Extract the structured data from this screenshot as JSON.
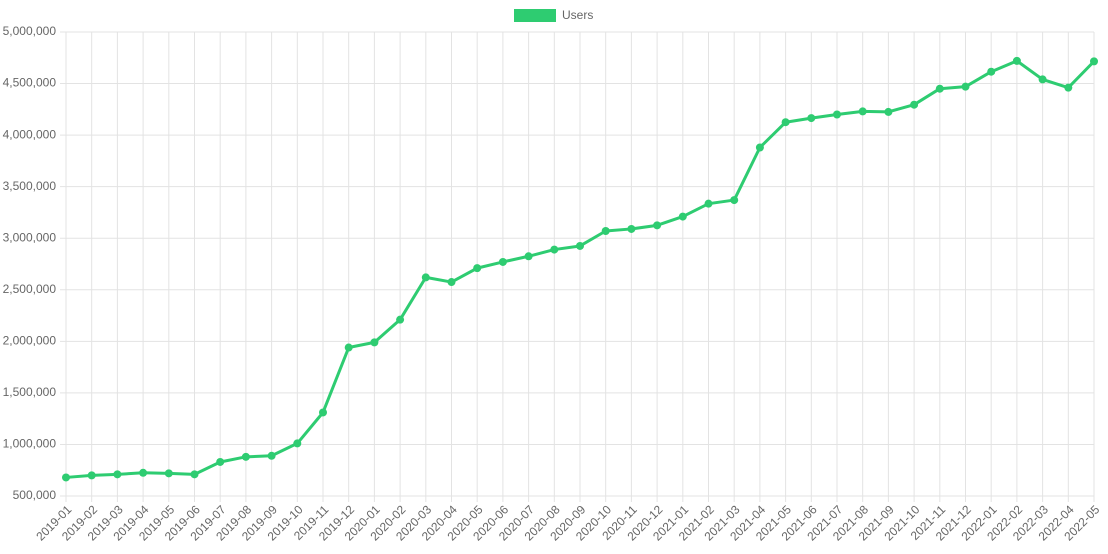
{
  "chart_data": {
    "type": "line",
    "categories": [
      "2019-01",
      "2019-02",
      "2019-03",
      "2019-04",
      "2019-05",
      "2019-06",
      "2019-07",
      "2019-08",
      "2019-09",
      "2019-10",
      "2019-11",
      "2019-12",
      "2020-01",
      "2020-02",
      "2020-03",
      "2020-04",
      "2020-05",
      "2020-06",
      "2020-07",
      "2020-08",
      "2020-09",
      "2020-10",
      "2020-11",
      "2020-12",
      "2021-01",
      "2021-02",
      "2021-03",
      "2021-04",
      "2021-05",
      "2021-06",
      "2021-07",
      "2021-08",
      "2021-09",
      "2021-10",
      "2021-11",
      "2021-12",
      "2022-01",
      "2022-02",
      "2022-03",
      "2022-04",
      "2022-05"
    ],
    "series": [
      {
        "name": "Users",
        "color": "#2ecc71",
        "values": [
          680000,
          700000,
          710000,
          725000,
          720000,
          710000,
          830000,
          880000,
          890000,
          1010000,
          1310000,
          1940000,
          1990000,
          2210000,
          2620000,
          2575000,
          2710000,
          2770000,
          2825000,
          2890000,
          2925000,
          3070000,
          3090000,
          3125000,
          3210000,
          3335000,
          3370000,
          3880000,
          4125000,
          4165000,
          4200000,
          4230000,
          4225000,
          4295000,
          4450000,
          4470000,
          4615000,
          4720000,
          4540000,
          4460000,
          4715000
        ]
      }
    ],
    "ylim": [
      500000,
      5000000
    ],
    "yticks": [
      {
        "value": 500000,
        "label": "500,000"
      },
      {
        "value": 1000000,
        "label": "1,000,000"
      },
      {
        "value": 1500000,
        "label": "1,500,000"
      },
      {
        "value": 2000000,
        "label": "2,000,000"
      },
      {
        "value": 2500000,
        "label": "2,500,000"
      },
      {
        "value": 3000000,
        "label": "3,000,000"
      },
      {
        "value": 3500000,
        "label": "3,500,000"
      },
      {
        "value": 4000000,
        "label": "4,000,000"
      },
      {
        "value": 4500000,
        "label": "4,500,000"
      },
      {
        "value": 5000000,
        "label": "5,000,000"
      }
    ],
    "grid": true,
    "legend": "top"
  }
}
